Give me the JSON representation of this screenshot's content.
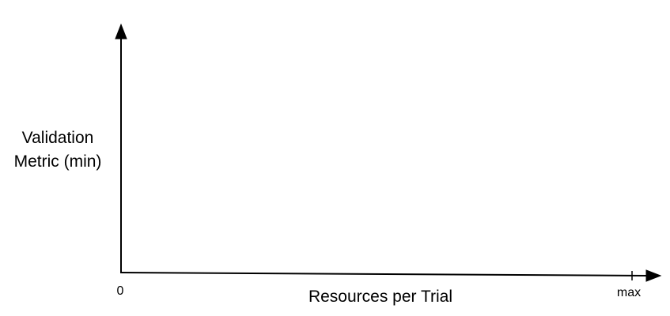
{
  "chart_data": {
    "type": "line",
    "title": "",
    "xlabel": "Resources per Trial",
    "ylabel_lines": [
      "Validation",
      "Metric (min)"
    ],
    "x_ticks": [
      "0",
      "max"
    ],
    "grid": false,
    "series": []
  }
}
